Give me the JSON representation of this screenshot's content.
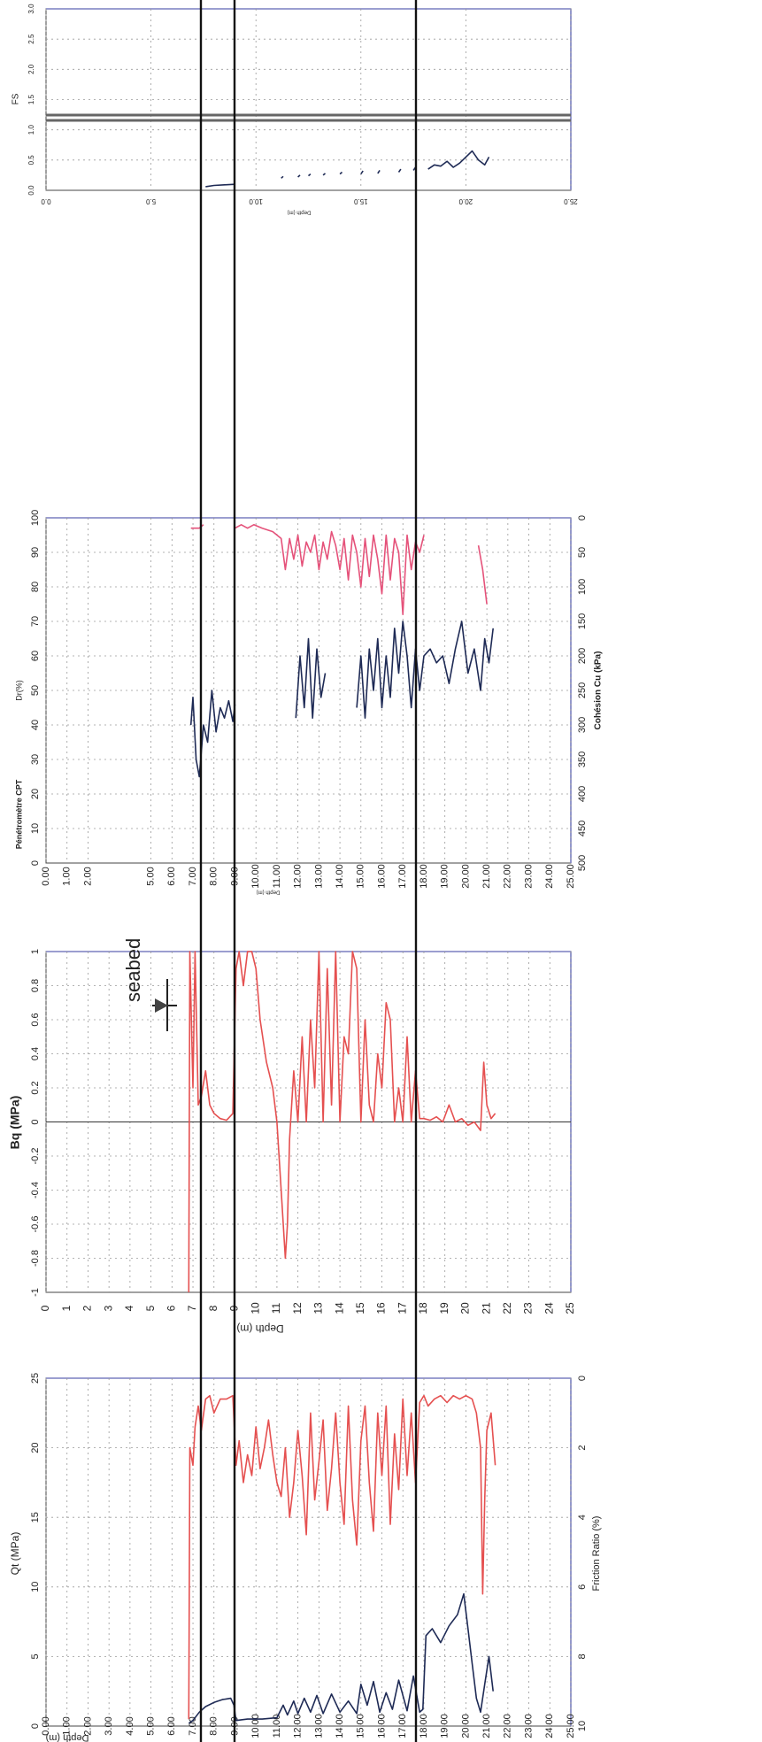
{
  "page_title": "",
  "colors": {
    "red": "#e55050",
    "dark": "#1e2a55",
    "pink": "#e5527a",
    "border": "#7a7fc0",
    "grid": "#9a9a9a"
  },
  "annotation": {
    "seabed_label": "seabed",
    "arrow_icon": "arrow-down-icon"
  },
  "chart_data": [
    {
      "id": "panel1",
      "type": "line",
      "title": "",
      "depth_axis_label": "Depth (m)",
      "depth_ticks": [
        "0.00",
        "1.00",
        "2.00",
        "3.00",
        "4.00",
        "5.00",
        "6.00",
        "7.00",
        "8.00",
        "9.00",
        "10.00",
        "11.00",
        "12.00",
        "13.00",
        "14.00",
        "15.00",
        "16.00",
        "17.00",
        "18.00",
        "19.00",
        "20.00",
        "21.00",
        "22.00",
        "23.00",
        "24.00",
        "25.00"
      ],
      "depth_range": [
        0,
        25
      ],
      "top_axis_label": "Qt (MPa)",
      "top_ticks": [
        "0",
        "5",
        "10",
        "15",
        "20",
        "25"
      ],
      "top_range": [
        0,
        25
      ],
      "bottom_axis_label": "Friction Ratio (%)",
      "bottom_ticks": [
        "10",
        "8",
        "6",
        "4",
        "2",
        "0"
      ],
      "bottom_range": [
        10,
        0
      ],
      "series": [
        {
          "name": "",
          "color": "#1e2a55",
          "axis": "qt",
          "depth": [
            6.8,
            7.0,
            7.3,
            7.6,
            8.0,
            8.4,
            8.8,
            8.95,
            9.05,
            9.6,
            10.3,
            11.0,
            11.3,
            11.5,
            11.8,
            12.0,
            12.3,
            12.6,
            12.9,
            13.2,
            13.6,
            14.0,
            14.4,
            14.8,
            15.0,
            15.3,
            15.6,
            15.9,
            16.2,
            16.5,
            16.8,
            17.2,
            17.5,
            17.8,
            17.95,
            18.1,
            18.4,
            18.8,
            19.2,
            19.6,
            19.9,
            20.1,
            20.3,
            20.5,
            20.7,
            20.9,
            21.1,
            21.3
          ],
          "value": [
            0.2,
            0.4,
            1.0,
            1.4,
            1.7,
            1.9,
            2.0,
            1.5,
            0.4,
            0.5,
            0.5,
            0.6,
            1.5,
            0.8,
            1.8,
            0.9,
            2.0,
            1.0,
            2.2,
            0.9,
            2.3,
            1.0,
            1.8,
            0.9,
            3.0,
            1.5,
            3.2,
            1.0,
            2.4,
            1.2,
            3.3,
            1.1,
            3.6,
            1.0,
            1.2,
            6.5,
            7.0,
            6.0,
            7.2,
            8.0,
            9.5,
            7.0,
            4.5,
            2.0,
            1.0,
            3.0,
            5.0,
            2.5
          ]
        },
        {
          "name": "",
          "color": "#e55050",
          "axis": "fr",
          "depth": [
            6.8,
            6.85,
            7.0,
            7.1,
            7.25,
            7.4,
            7.6,
            7.8,
            8.0,
            8.3,
            8.6,
            8.9,
            9.05,
            9.2,
            9.4,
            9.6,
            9.8,
            10.0,
            10.2,
            10.4,
            10.6,
            10.8,
            11.0,
            11.2,
            11.4,
            11.6,
            11.8,
            12.0,
            12.2,
            12.4,
            12.6,
            12.8,
            13.0,
            13.2,
            13.4,
            13.6,
            13.8,
            14.0,
            14.2,
            14.4,
            14.6,
            14.8,
            15.0,
            15.2,
            15.4,
            15.6,
            15.8,
            16.0,
            16.2,
            16.4,
            16.6,
            16.8,
            17.0,
            17.2,
            17.4,
            17.6,
            17.8,
            18.0,
            18.2,
            18.5,
            18.8,
            19.1,
            19.4,
            19.7,
            20.0,
            20.3,
            20.5,
            20.7,
            20.8,
            20.9,
            21.0,
            21.2,
            21.4
          ],
          "value": [
            9.8,
            2.0,
            2.5,
            1.4,
            0.8,
            1.5,
            0.6,
            0.5,
            1.0,
            0.6,
            0.6,
            0.5,
            2.5,
            1.8,
            3.0,
            2.2,
            2.8,
            1.4,
            2.6,
            2.0,
            1.2,
            2.2,
            3.0,
            3.4,
            2.0,
            4.0,
            3.0,
            1.5,
            2.8,
            4.5,
            1.0,
            3.5,
            2.4,
            1.2,
            3.8,
            2.6,
            1.0,
            3.0,
            4.2,
            0.8,
            3.5,
            4.8,
            1.8,
            0.8,
            3.0,
            4.4,
            1.0,
            2.8,
            0.8,
            4.2,
            1.6,
            3.2,
            0.6,
            2.8,
            1.0,
            3.0,
            0.7,
            0.5,
            0.8,
            0.6,
            0.5,
            0.7,
            0.5,
            0.6,
            0.5,
            0.6,
            1.0,
            2.0,
            6.2,
            3.5,
            1.5,
            1.0,
            2.5
          ]
        }
      ]
    },
    {
      "id": "panel2",
      "type": "line",
      "title": "",
      "depth_axis_label": "Depth (m)",
      "depth_ticks": [
        "0",
        "1",
        "2",
        "3",
        "4",
        "5",
        "6",
        "7",
        "8",
        "9",
        "10",
        "11",
        "12",
        "13",
        "14",
        "15",
        "16",
        "17",
        "18",
        "19",
        "20",
        "21",
        "22",
        "23",
        "24",
        "25"
      ],
      "depth_range": [
        0,
        25
      ],
      "top_axis_label": "Bq (MPa)",
      "top_ticks": [
        "-1",
        "-0.8",
        "-0.6",
        "-0.4",
        "-0.2",
        "0",
        "0.2",
        "0.4",
        "0.6",
        "0.8",
        "1"
      ],
      "top_range": [
        -1,
        1
      ],
      "series": [
        {
          "name": "",
          "color": "#e55050",
          "axis": "bq",
          "depth": [
            6.8,
            6.85,
            7.0,
            7.1,
            7.25,
            7.4,
            7.6,
            7.8,
            8.0,
            8.3,
            8.6,
            8.9,
            9.05,
            9.2,
            9.4,
            9.6,
            9.8,
            10.0,
            10.2,
            10.5,
            10.8,
            11.0,
            11.2,
            11.4,
            11.5,
            11.6,
            11.8,
            12.0,
            12.2,
            12.4,
            12.6,
            12.8,
            13.0,
            13.2,
            13.4,
            13.6,
            13.8,
            14.0,
            14.2,
            14.4,
            14.6,
            14.8,
            15.0,
            15.2,
            15.4,
            15.6,
            15.8,
            16.0,
            16.2,
            16.4,
            16.6,
            16.8,
            17.0,
            17.2,
            17.4,
            17.6,
            17.8,
            18.0,
            18.3,
            18.6,
            18.9,
            19.2,
            19.5,
            19.8,
            20.1,
            20.4,
            20.7,
            20.85,
            21.0,
            21.2,
            21.4
          ],
          "value": [
            -1.0,
            1.0,
            0.2,
            1.0,
            0.1,
            0.15,
            0.3,
            0.1,
            0.05,
            0.02,
            0.01,
            0.05,
            0.9,
            1.0,
            0.8,
            1.0,
            1.0,
            0.9,
            0.6,
            0.35,
            0.2,
            0.0,
            -0.4,
            -0.8,
            -0.6,
            -0.1,
            0.3,
            0.0,
            0.5,
            0.0,
            0.6,
            0.2,
            1.0,
            0.0,
            0.9,
            0.1,
            1.0,
            0.0,
            0.5,
            0.4,
            1.0,
            0.9,
            0.0,
            0.6,
            0.1,
            0.0,
            0.4,
            0.2,
            0.7,
            0.6,
            0.0,
            0.2,
            0.0,
            0.5,
            0.0,
            0.3,
            0.02,
            0.02,
            0.01,
            0.03,
            0.0,
            0.1,
            0.0,
            0.02,
            -0.02,
            0.0,
            -0.05,
            0.35,
            0.1,
            0.02,
            0.05
          ]
        }
      ]
    },
    {
      "id": "panel3",
      "type": "line",
      "title": "",
      "depth_axis_label": "Depth (m)",
      "depth_ticks": [
        "0.00",
        "1.00",
        "2.00",
        "5.00",
        "6.00",
        "7.00",
        "8.00",
        "9.00",
        "10.00",
        "11.00",
        "12.00",
        "13.00",
        "14.00",
        "15.00",
        "16.00",
        "17.00",
        "18.00",
        "19.00",
        "20.00",
        "21.00",
        "22.00",
        "23.00",
        "24.00",
        "25.00"
      ],
      "depth_tick_values": [
        0,
        1,
        2,
        5,
        6,
        7,
        8,
        9,
        10,
        11,
        12,
        13,
        14,
        15,
        16,
        17,
        18,
        19,
        20,
        21,
        22,
        23,
        24,
        25
      ],
      "depth_range": [
        0,
        25
      ],
      "top_axis_label": "Dr(%)",
      "top_label_prefix": "Pénétromètre CPT",
      "top_ticks": [
        "0",
        "10",
        "20",
        "30",
        "40",
        "50",
        "60",
        "70",
        "80",
        "90",
        "100"
      ],
      "top_range": [
        0,
        100
      ],
      "bottom_axis_label": "Cohésion Cu (kPa)",
      "bottom_ticks": [
        "500",
        "450",
        "400",
        "350",
        "300",
        "250",
        "200",
        "150",
        "100",
        "50",
        "0"
      ],
      "bottom_range": [
        500,
        0
      ],
      "series": [
        {
          "name": "",
          "color": "#1e2a55",
          "axis": "dr",
          "depth": [
            6.9,
            7.0,
            7.15,
            7.3,
            7.5,
            7.7,
            7.9,
            8.1,
            8.3,
            8.5,
            8.7,
            8.9,
            9.0,
            null,
            11.9,
            12.1,
            12.3,
            12.5,
            12.7,
            12.9,
            13.1,
            13.3,
            null,
            14.8,
            15.0,
            15.2,
            15.4,
            15.6,
            15.8,
            16.0,
            16.2,
            16.4,
            16.6,
            16.8,
            17.0,
            17.2,
            17.4,
            17.6,
            17.8,
            18.0,
            18.3,
            18.6,
            18.9,
            19.2,
            19.5,
            19.8,
            20.1,
            20.4,
            20.7,
            20.9,
            21.1,
            21.3
          ],
          "value": [
            40,
            48,
            30,
            25,
            40,
            35,
            50,
            38,
            45,
            42,
            47,
            41,
            46,
            null,
            42,
            60,
            45,
            65,
            42,
            62,
            48,
            55,
            null,
            45,
            60,
            42,
            62,
            50,
            65,
            45,
            60,
            48,
            68,
            55,
            70,
            60,
            45,
            62,
            50,
            60,
            62,
            58,
            60,
            52,
            62,
            70,
            55,
            62,
            50,
            65,
            58,
            68
          ]
        },
        {
          "name": "",
          "color": "#e5527a",
          "axis": "dr",
          "depth": [
            6.9,
            7.3,
            7.5,
            null,
            9.0,
            9.3,
            9.6,
            9.9,
            10.3,
            10.8,
            11.2,
            11.4,
            11.6,
            11.8,
            12.0,
            12.2,
            12.4,
            12.6,
            12.8,
            13.0,
            13.2,
            13.4,
            13.6,
            13.8,
            14.0,
            14.2,
            14.4,
            14.6,
            14.8,
            15.0,
            15.2,
            15.4,
            15.6,
            15.8,
            16.0,
            16.2,
            16.4,
            16.6,
            16.8,
            17.0,
            17.2,
            17.4,
            17.6,
            17.8,
            18.0,
            null,
            20.6,
            20.8,
            21.0
          ],
          "value": [
            97,
            97,
            98,
            null,
            97,
            98,
            97,
            98,
            97,
            96,
            94,
            85,
            94,
            88,
            95,
            86,
            93,
            90,
            95,
            85,
            93,
            88,
            96,
            92,
            85,
            94,
            82,
            95,
            90,
            80,
            94,
            83,
            95,
            88,
            78,
            95,
            82,
            94,
            90,
            72,
            95,
            85,
            93,
            90,
            95,
            null,
            92,
            85,
            75
          ]
        }
      ]
    },
    {
      "id": "panel4",
      "type": "line",
      "title": "",
      "depth_axis_label": "Depth (m)",
      "depth_ticks": [
        "0.0",
        "5.0",
        "10.0",
        "15.0",
        "20.0",
        "25.0"
      ],
      "depth_range": [
        0,
        25
      ],
      "top_axis_label": "FS",
      "top_ticks": [
        "0.0",
        "0.5",
        "1.0",
        "1.5",
        "2.0",
        "2.5",
        "3.0"
      ],
      "top_range": [
        0,
        3
      ],
      "series": [
        {
          "name": "",
          "color": "#1e2a55",
          "axis": "fs",
          "depth": [
            7.6,
            8.0,
            8.5,
            9.0,
            null,
            11.2,
            11.3,
            null,
            12.0,
            12.1,
            null,
            12.5,
            12.6,
            null,
            13.2,
            13.3,
            null,
            14.0,
            14.1,
            null,
            15.0,
            15.1,
            null,
            15.8,
            15.9,
            null,
            16.8,
            16.9,
            null,
            17.5,
            17.6,
            null,
            18.2,
            18.5,
            18.8,
            19.1,
            19.4,
            19.7,
            20.0,
            20.3,
            20.6,
            20.9,
            21.1
          ],
          "value": [
            0.06,
            0.08,
            0.09,
            0.1,
            null,
            0.2,
            0.23,
            null,
            0.22,
            0.25,
            null,
            0.24,
            0.27,
            null,
            0.25,
            0.28,
            null,
            0.27,
            0.3,
            null,
            0.27,
            0.32,
            null,
            0.28,
            0.33,
            null,
            0.3,
            0.35,
            null,
            0.33,
            0.38,
            null,
            0.35,
            0.42,
            0.4,
            0.48,
            0.38,
            0.45,
            0.55,
            0.65,
            0.5,
            0.42,
            0.55
          ]
        }
      ]
    }
  ]
}
